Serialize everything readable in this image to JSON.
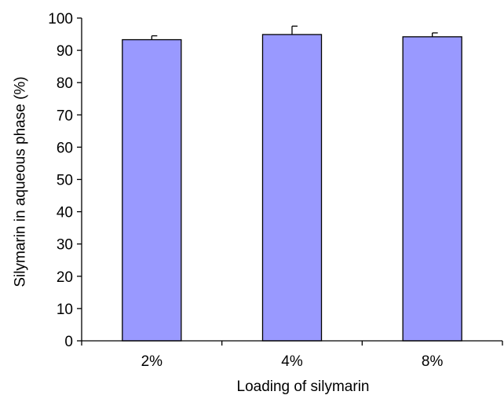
{
  "chart_data": {
    "type": "bar",
    "categories": [
      "2%",
      "4%",
      "8%"
    ],
    "series": [
      {
        "values": [
          93.3,
          94.9,
          94.2
        ],
        "error": [
          1.2,
          2.6,
          1.2
        ]
      }
    ],
    "xlabel": "Loading of silymarin",
    "ylabel": "Silymarin in aqueous phase (%)",
    "ylim": [
      0,
      100
    ],
    "yticks": [
      0,
      10,
      20,
      30,
      40,
      50,
      60,
      70,
      80,
      90,
      100
    ],
    "bar_color": "#9999ff",
    "bar_edge_color": "#000000",
    "grid": false,
    "legend": "none"
  }
}
